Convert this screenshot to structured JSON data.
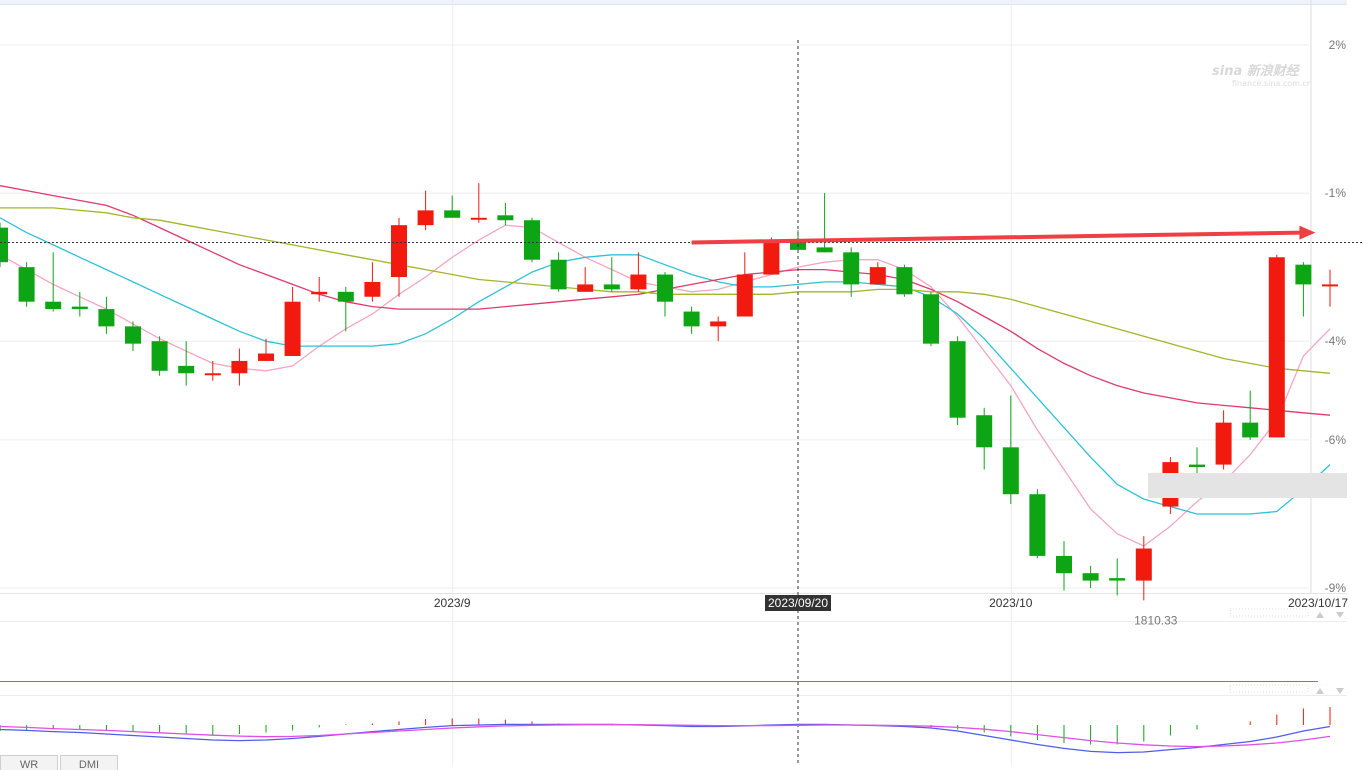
{
  "chart_data": {
    "type": "candlestick",
    "y_axis": {
      "ticks": [
        "2%",
        "-1%",
        "-4%",
        "-6%",
        "-9%"
      ],
      "tick_values": [
        2,
        -1,
        -4,
        -6,
        -9
      ],
      "range": [
        -9,
        2
      ]
    },
    "x_axis": {
      "labels": [
        {
          "text": "2023/9",
          "index": 17
        },
        {
          "text": "2023/10",
          "index": 38
        }
      ],
      "crosshair_date": "2023/09/20",
      "last_date": "2023/10/17"
    },
    "annotations": {
      "low_label": "1810.33",
      "crosshair_index": 30,
      "arrow_level": -1.85,
      "arrow_start_index": 26,
      "arrow_end_index": 49
    },
    "candles": [
      {
        "o": -1.7,
        "c": -2.4,
        "h": -1.6,
        "l": -2.5
      },
      {
        "o": -2.5,
        "c": -3.2,
        "h": -2.4,
        "l": -3.3
      },
      {
        "o": -3.2,
        "c": -3.35,
        "h": -2.2,
        "l": -3.4
      },
      {
        "o": -3.3,
        "c": -3.35,
        "h": -3.0,
        "l": -3.5
      },
      {
        "o": -3.35,
        "c": -3.7,
        "h": -3.1,
        "l": -3.85
      },
      {
        "o": -3.7,
        "c": -4.05,
        "h": -3.6,
        "l": -4.2
      },
      {
        "o": -4.0,
        "c": -4.6,
        "h": -3.9,
        "l": -4.7
      },
      {
        "o": -4.5,
        "c": -4.65,
        "h": -4.0,
        "l": -4.9
      },
      {
        "o": -4.65,
        "c": -4.65,
        "h": -4.4,
        "l": -4.8
      },
      {
        "o": -4.65,
        "c": -4.4,
        "h": -4.15,
        "l": -4.9
      },
      {
        "o": -4.4,
        "c": -4.25,
        "h": -3.95,
        "l": -4.4
      },
      {
        "o": -4.3,
        "c": -3.2,
        "h": -2.9,
        "l": -4.3
      },
      {
        "o": -3.05,
        "c": -3.0,
        "h": -2.7,
        "l": -3.2
      },
      {
        "o": -3.0,
        "c": -3.2,
        "h": -2.9,
        "l": -3.8
      },
      {
        "o": -3.1,
        "c": -2.8,
        "h": -2.4,
        "l": -3.2
      },
      {
        "o": -2.7,
        "c": -1.65,
        "h": -1.5,
        "l": -3.1
      },
      {
        "o": -1.65,
        "c": -1.35,
        "h": -0.95,
        "l": -1.75
      },
      {
        "o": -1.35,
        "c": -1.5,
        "h": -1.05,
        "l": -1.5
      },
      {
        "o": -1.5,
        "c": -1.5,
        "h": -0.8,
        "l": -1.6
      },
      {
        "o": -1.45,
        "c": -1.55,
        "h": -1.2,
        "l": -1.65
      },
      {
        "o": -1.55,
        "c": -2.35,
        "h": -1.5,
        "l": -2.4
      },
      {
        "o": -2.35,
        "c": -2.95,
        "h": -2.2,
        "l": -3.0
      },
      {
        "o": -3.0,
        "c": -2.85,
        "h": -2.5,
        "l": -3.0
      },
      {
        "o": -2.85,
        "c": -2.95,
        "h": -2.3,
        "l": -3.0
      },
      {
        "o": -2.95,
        "c": -2.65,
        "h": -2.2,
        "l": -3.0
      },
      {
        "o": -2.65,
        "c": -3.2,
        "h": -2.6,
        "l": -3.5
      },
      {
        "o": -3.4,
        "c": -3.7,
        "h": -3.3,
        "l": -3.85
      },
      {
        "o": -3.7,
        "c": -3.6,
        "h": -3.5,
        "l": -4.0
      },
      {
        "o": -3.5,
        "c": -2.65,
        "h": -2.2,
        "l": -3.5
      },
      {
        "o": -2.65,
        "c": -2.0,
        "h": -1.9,
        "l": -2.65
      },
      {
        "o": -2.0,
        "c": -2.15,
        "h": -1.75,
        "l": -2.2
      },
      {
        "o": -2.1,
        "c": -2.2,
        "h": -1.0,
        "l": -2.2
      },
      {
        "o": -2.2,
        "c": -2.85,
        "h": -2.1,
        "l": -3.1
      },
      {
        "o": -2.85,
        "c": -2.5,
        "h": -2.4,
        "l": -2.85
      },
      {
        "o": -2.5,
        "c": -3.05,
        "h": -2.45,
        "l": -3.1
      },
      {
        "o": -3.05,
        "c": -4.05,
        "h": -3.0,
        "l": -4.1
      },
      {
        "o": -4.0,
        "c": -5.55,
        "h": -3.9,
        "l": -5.7
      },
      {
        "o": -5.5,
        "c": -6.15,
        "h": -5.35,
        "l": -6.6
      },
      {
        "o": -6.15,
        "c": -7.1,
        "h": -5.1,
        "l": -7.3
      },
      {
        "o": -7.1,
        "c": -8.35,
        "h": -7.0,
        "l": -8.4
      },
      {
        "o": -8.35,
        "c": -8.7,
        "h": -8.05,
        "l": -9.05
      },
      {
        "o": -8.7,
        "c": -8.85,
        "h": -8.55,
        "l": -9.0
      },
      {
        "o": -8.8,
        "c": -8.85,
        "h": -8.4,
        "l": -9.15
      },
      {
        "o": -8.85,
        "c": -8.2,
        "h": -7.95,
        "l": -9.25
      },
      {
        "o": -7.35,
        "c": -6.45,
        "h": -6.35,
        "l": -7.5
      },
      {
        "o": -6.5,
        "c": -6.55,
        "h": -6.15,
        "l": -6.95
      },
      {
        "o": -6.5,
        "c": -5.65,
        "h": -5.4,
        "l": -6.6
      },
      {
        "o": -5.65,
        "c": -5.95,
        "h": -5.0,
        "l": -6.0
      },
      {
        "o": -5.95,
        "c": -2.3,
        "h": -2.25,
        "l": -5.95
      },
      {
        "o": -2.45,
        "c": -2.85,
        "h": -2.4,
        "l": -3.5
      },
      {
        "o": -2.85,
        "c": -2.85,
        "h": -2.55,
        "l": -3.3
      }
    ],
    "moving_averages": [
      {
        "color": "#f4a6c0",
        "values": [
          -2.25,
          -2.55,
          -2.85,
          -3.1,
          -3.35,
          -3.65,
          -3.95,
          -4.2,
          -4.45,
          -4.55,
          -4.6,
          -4.5,
          -4.1,
          -3.75,
          -3.45,
          -3.05,
          -2.7,
          -2.3,
          -1.95,
          -1.65,
          -1.7,
          -2.0,
          -2.3,
          -2.55,
          -2.8,
          -2.9,
          -3.0,
          -2.95,
          -2.8,
          -2.65,
          -2.5,
          -2.4,
          -2.35,
          -2.35,
          -2.55,
          -2.9,
          -3.5,
          -4.2,
          -4.9,
          -5.8,
          -6.6,
          -7.4,
          -7.9,
          -8.15,
          -7.75,
          -7.25,
          -6.85,
          -6.3,
          -5.6,
          -4.3,
          -3.75
        ]
      },
      {
        "color": "#2ec1d6",
        "values": [
          -1.5,
          -1.8,
          -2.05,
          -2.3,
          -2.55,
          -2.8,
          -3.05,
          -3.3,
          -3.55,
          -3.8,
          -4.0,
          -4.1,
          -4.1,
          -4.1,
          -4.1,
          -4.05,
          -3.85,
          -3.55,
          -3.2,
          -2.9,
          -2.6,
          -2.4,
          -2.3,
          -2.25,
          -2.25,
          -2.45,
          -2.65,
          -2.8,
          -2.9,
          -2.9,
          -2.85,
          -2.8,
          -2.8,
          -2.85,
          -2.9,
          -3.1,
          -3.45,
          -3.95,
          -4.55,
          -5.15,
          -5.75,
          -6.35,
          -6.9,
          -7.2,
          -7.35,
          -7.5,
          -7.5,
          -7.5,
          -7.45,
          -7.0,
          -6.5
        ]
      },
      {
        "color": "#e0396b",
        "values": [
          -0.85,
          -0.95,
          -1.05,
          -1.15,
          -1.25,
          -1.45,
          -1.7,
          -1.95,
          -2.2,
          -2.45,
          -2.65,
          -2.85,
          -3.05,
          -3.2,
          -3.3,
          -3.35,
          -3.35,
          -3.35,
          -3.35,
          -3.3,
          -3.25,
          -3.2,
          -3.15,
          -3.1,
          -3.05,
          -2.95,
          -2.85,
          -2.75,
          -2.65,
          -2.6,
          -2.55,
          -2.55,
          -2.6,
          -2.65,
          -2.75,
          -2.95,
          -3.2,
          -3.5,
          -3.8,
          -4.15,
          -4.45,
          -4.7,
          -4.9,
          -5.05,
          -5.15,
          -5.25,
          -5.3,
          -5.35,
          -5.4,
          -5.45,
          -5.5
        ]
      },
      {
        "color": "#a3b52a",
        "values": [
          -1.3,
          -1.3,
          -1.3,
          -1.35,
          -1.4,
          -1.5,
          -1.55,
          -1.65,
          -1.75,
          -1.85,
          -1.95,
          -2.05,
          -2.15,
          -2.25,
          -2.35,
          -2.45,
          -2.55,
          -2.65,
          -2.75,
          -2.8,
          -2.85,
          -2.9,
          -2.95,
          -3.0,
          -3.0,
          -3.05,
          -3.05,
          -3.05,
          -3.05,
          -3.05,
          -3.0,
          -3.0,
          -3.0,
          -2.95,
          -2.95,
          -3.0,
          -3.0,
          -3.05,
          -3.15,
          -3.3,
          -3.45,
          -3.6,
          -3.75,
          -3.9,
          -4.05,
          -4.2,
          -4.35,
          -4.45,
          -4.55,
          -4.6,
          -4.65
        ]
      }
    ],
    "lower_panel_macd": {
      "hist": [
        -0.2,
        -0.18,
        -0.15,
        -0.15,
        -0.18,
        -0.22,
        -0.25,
        -0.28,
        -0.32,
        -0.3,
        -0.25,
        -0.18,
        -0.08,
        0.02,
        0.05,
        0.12,
        0.2,
        0.22,
        0.22,
        0.18,
        0.12,
        0.05,
        0.0,
        -0.02,
        -0.02,
        -0.02,
        -0.05,
        -0.06,
        -0.05,
        0.0,
        0.02,
        0.02,
        0.0,
        -0.03,
        -0.05,
        -0.08,
        -0.15,
        -0.25,
        -0.38,
        -0.5,
        -0.6,
        -0.65,
        -0.65,
        -0.55,
        -0.35,
        -0.15,
        0.0,
        0.12,
        0.35,
        0.55,
        0.6
      ],
      "dif": [
        -0.15,
        -0.18,
        -0.22,
        -0.25,
        -0.3,
        -0.35,
        -0.4,
        -0.45,
        -0.5,
        -0.52,
        -0.5,
        -0.45,
        -0.38,
        -0.3,
        -0.22,
        -0.15,
        -0.08,
        -0.02,
        0.0,
        0.02,
        0.02,
        0.02,
        0.02,
        0.02,
        0.0,
        -0.02,
        -0.05,
        -0.05,
        -0.03,
        0.0,
        0.02,
        0.02,
        0.0,
        -0.02,
        -0.05,
        -0.1,
        -0.2,
        -0.35,
        -0.5,
        -0.65,
        -0.78,
        -0.88,
        -0.92,
        -0.9,
        -0.82,
        -0.75,
        -0.65,
        -0.55,
        -0.4,
        -0.2,
        -0.05
      ],
      "dea": [
        -0.05,
        -0.08,
        -0.12,
        -0.15,
        -0.18,
        -0.22,
        -0.26,
        -0.3,
        -0.34,
        -0.37,
        -0.39,
        -0.38,
        -0.35,
        -0.3,
        -0.25,
        -0.2,
        -0.15,
        -0.1,
        -0.06,
        -0.03,
        -0.01,
        0.0,
        0.01,
        0.01,
        0.01,
        0.0,
        -0.01,
        -0.02,
        -0.02,
        -0.02,
        -0.01,
        0.0,
        0.0,
        -0.01,
        -0.02,
        -0.04,
        -0.08,
        -0.14,
        -0.22,
        -0.32,
        -0.42,
        -0.52,
        -0.6,
        -0.66,
        -0.7,
        -0.72,
        -0.7,
        -0.66,
        -0.6,
        -0.5,
        -0.38
      ],
      "dif_color": "#4f5ee8",
      "dea_color": "#e04fe6"
    },
    "colors": {
      "up": "#f21a0e",
      "down": "#0ea515",
      "arrow": "#ef3f45",
      "grid": "#ececec"
    }
  },
  "tabs": [
    "WR",
    "DMI"
  ],
  "watermark": {
    "brand": "sina",
    "text": "新浪财经",
    "sub": "finance.sina.com.cn"
  }
}
